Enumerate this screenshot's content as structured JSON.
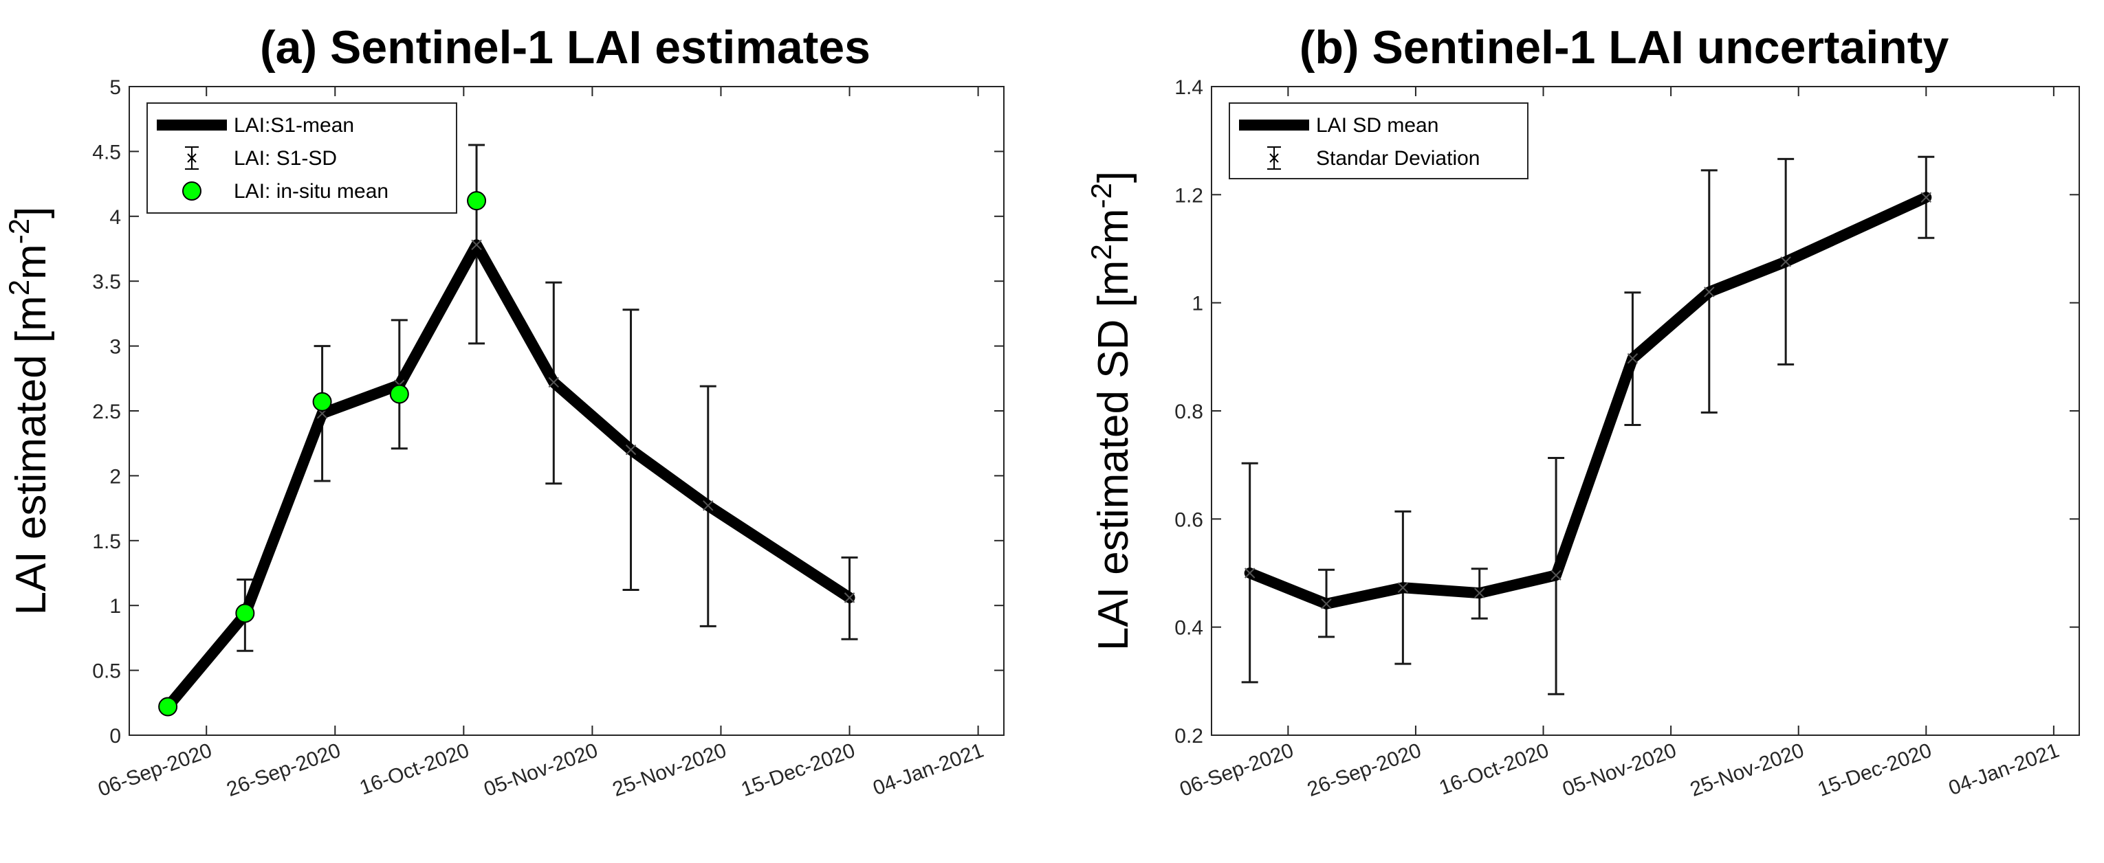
{
  "chart_data": [
    {
      "type": "line",
      "title": "(a) Sentinel-1 LAI estimates",
      "ylabel": {
        "base": "LAI estimated [m",
        "sup1": "2",
        "mid": "m",
        "sup2": "-2",
        "end": "]"
      },
      "ylim": [
        0,
        5
      ],
      "yticks": [
        "0",
        "0.5",
        "1",
        "1.5",
        "2",
        "2.5",
        "3",
        "3.5",
        "4",
        "4.5",
        "5"
      ],
      "xlim_days": [
        -12,
        124
      ],
      "xticks": [
        {
          "label": "06-Sep-2020",
          "day": 0
        },
        {
          "label": "26-Sep-2020",
          "day": 20
        },
        {
          "label": "16-Oct-2020",
          "day": 40
        },
        {
          "label": "05-Nov-2020",
          "day": 60
        },
        {
          "label": "25-Nov-2020",
          "day": 80
        },
        {
          "label": "15-Dec-2020",
          "day": 100
        },
        {
          "label": "04-Jan-2021",
          "day": 120
        }
      ],
      "series": [
        {
          "name": "LAI:S1-mean",
          "style": "thick-line",
          "days": [
            -6,
            6,
            18,
            30,
            42,
            54,
            66,
            78,
            100
          ],
          "values": [
            0.22,
            0.93,
            2.48,
            2.7,
            3.78,
            2.72,
            2.2,
            1.77,
            1.06
          ]
        },
        {
          "name": "LAI: S1-SD",
          "style": "errorbar",
          "days": [
            6,
            18,
            30,
            42,
            54,
            66,
            78,
            100
          ],
          "lower": [
            0.65,
            1.96,
            2.21,
            3.02,
            1.94,
            1.12,
            0.84,
            0.74
          ],
          "upper": [
            1.2,
            3.0,
            3.2,
            4.55,
            3.49,
            3.28,
            2.69,
            1.37
          ]
        },
        {
          "name": "LAI: in-situ mean",
          "style": "green-marker",
          "days": [
            -6,
            6,
            18,
            30,
            42
          ],
          "values": [
            0.22,
            0.94,
            2.57,
            2.63,
            4.12
          ]
        }
      ],
      "legend_position": "top-left"
    },
    {
      "type": "line",
      "title": "(b) Sentinel-1 LAI uncertainty",
      "ylabel": {
        "base": "LAI estimated SD [m",
        "sup1": "2",
        "mid": "m",
        "sup2": "-2",
        "end": "]"
      },
      "ylim": [
        0.2,
        1.4
      ],
      "yticks": [
        "0.2",
        "0.4",
        "0.6",
        "0.8",
        "1",
        "1.2",
        "1.4"
      ],
      "xlim_days": [
        -12,
        124
      ],
      "xticks": [
        {
          "label": "06-Sep-2020",
          "day": 0
        },
        {
          "label": "26-Sep-2020",
          "day": 20
        },
        {
          "label": "16-Oct-2020",
          "day": 40
        },
        {
          "label": "05-Nov-2020",
          "day": 60
        },
        {
          "label": "25-Nov-2020",
          "day": 80
        },
        {
          "label": "15-Dec-2020",
          "day": 100
        },
        {
          "label": "04-Jan-2021",
          "day": 120
        }
      ],
      "series": [
        {
          "name": "LAI SD mean",
          "style": "thick-line",
          "days": [
            -6,
            6,
            18,
            30,
            42,
            54,
            66,
            78,
            100
          ],
          "values": [
            0.5,
            0.443,
            0.473,
            0.463,
            0.496,
            0.897,
            1.02,
            1.076,
            1.195
          ]
        },
        {
          "name": "Standar Deviation",
          "style": "errorbar",
          "days": [
            -6,
            6,
            18,
            30,
            42,
            54,
            66,
            78,
            100
          ],
          "lower": [
            0.298,
            0.382,
            0.332,
            0.416,
            0.276,
            0.774,
            0.797,
            0.886,
            1.12
          ],
          "upper": [
            0.703,
            0.506,
            0.614,
            0.508,
            0.713,
            1.019,
            1.245,
            1.266,
            1.27
          ]
        }
      ],
      "legend_position": "top-left"
    }
  ]
}
